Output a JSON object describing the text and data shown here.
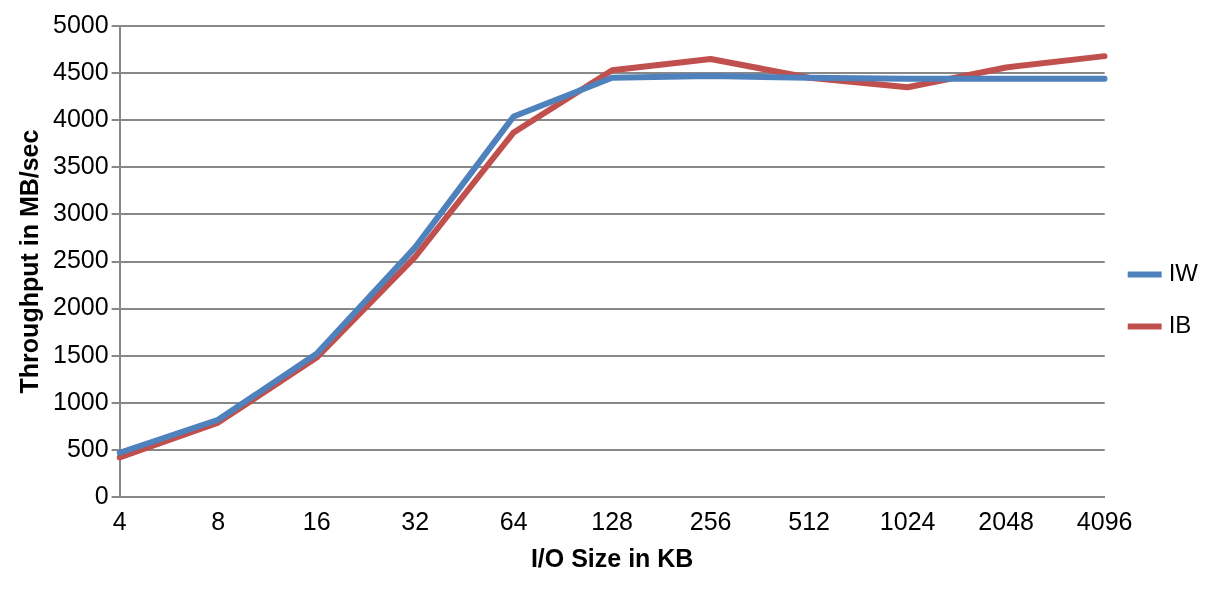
{
  "chart_data": {
    "type": "line",
    "xlabel": "I/O Size in KB",
    "ylabel": "Throughput in MB/sec",
    "categories": [
      "4",
      "8",
      "16",
      "32",
      "64",
      "128",
      "256",
      "512",
      "1024",
      "2048",
      "4096"
    ],
    "series": [
      {
        "name": "IW",
        "color": "#4f81bd",
        "values": [
          470,
          820,
          1520,
          2650,
          4040,
          4450,
          4470,
          4450,
          4440,
          4440,
          4440
        ]
      },
      {
        "name": "IB",
        "color": "#c0504d",
        "values": [
          420,
          790,
          1480,
          2550,
          3870,
          4530,
          4650,
          4450,
          4350,
          4560,
          4680
        ]
      }
    ],
    "ylim": [
      0,
      5000
    ],
    "yticks": [
      0,
      500,
      1000,
      1500,
      2000,
      2500,
      3000,
      3500,
      4000,
      4500,
      5000
    ],
    "grid": "y",
    "legend": "right",
    "marker": "none",
    "line_style": "solid"
  }
}
